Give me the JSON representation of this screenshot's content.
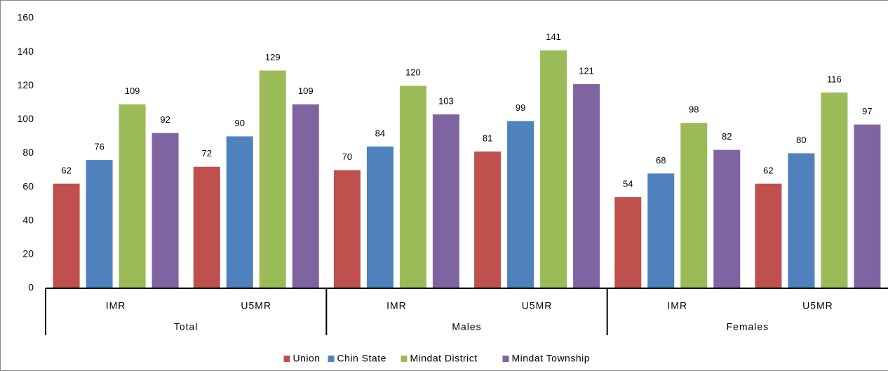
{
  "chart_data": {
    "type": "bar",
    "categories": [
      "IMR",
      "U5MR",
      "IMR",
      "U5MR",
      "IMR",
      "U5MR"
    ],
    "groups": [
      "Total",
      "Males",
      "Females"
    ],
    "series": [
      {
        "name": "Union",
        "color": "#c0504d",
        "values": [
          62,
          72,
          70,
          81,
          54,
          62
        ]
      },
      {
        "name": "Chin State",
        "color": "#4f81bd",
        "values": [
          76,
          90,
          84,
          99,
          68,
          80
        ]
      },
      {
        "name": "Mindat District",
        "color": "#9bbb59",
        "values": [
          109,
          129,
          120,
          141,
          98,
          116
        ]
      },
      {
        "name": "Mindat Township",
        "color": "#8064a2",
        "values": [
          92,
          109,
          103,
          121,
          82,
          97
        ]
      }
    ],
    "ylim": [
      0,
      160
    ],
    "yticks": [
      0,
      20,
      40,
      60,
      80,
      100,
      120,
      140,
      160
    ],
    "grid": false,
    "legend": "bottom"
  }
}
